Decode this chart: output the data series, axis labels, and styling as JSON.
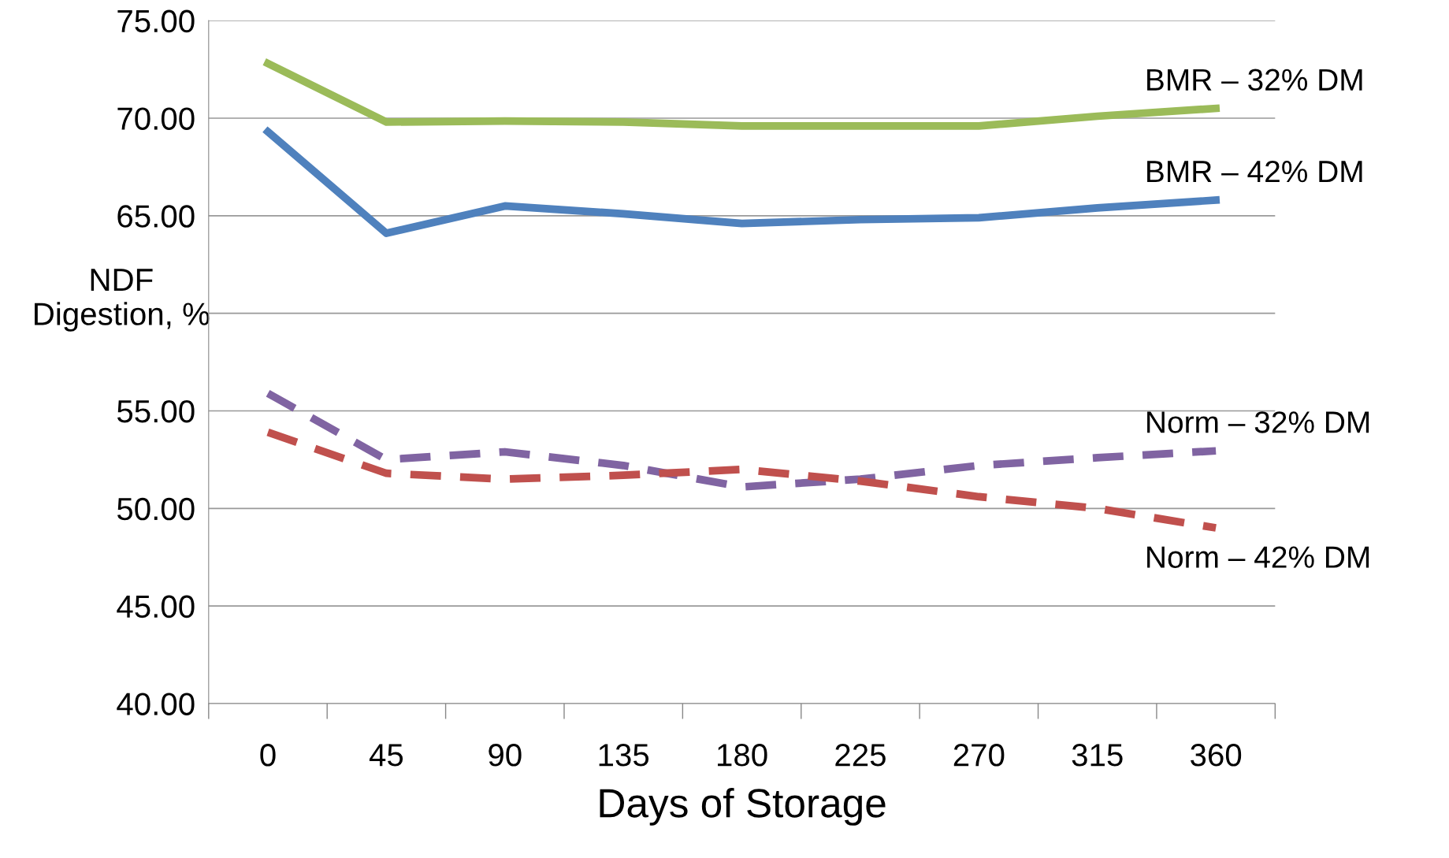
{
  "chart_data": {
    "type": "line",
    "xlabel": "Days of Storage",
    "ylabel": "NDF\nDigestion, %",
    "categories": [
      "0",
      "45",
      "90",
      "135",
      "180",
      "225",
      "270",
      "315",
      "360"
    ],
    "series": [
      {
        "name": "BMR – 32% DM",
        "color": "#9bbb59",
        "line_style": "solid",
        "values": [
          72.8,
          69.8,
          69.85,
          69.8,
          69.6,
          69.6,
          69.6,
          70.1,
          70.5
        ]
      },
      {
        "name": "BMR – 42% DM",
        "color": "#4f81bd",
        "line_style": "solid",
        "values": [
          69.3,
          64.1,
          65.5,
          65.1,
          64.6,
          64.8,
          64.9,
          65.4,
          65.8
        ]
      },
      {
        "name": "Norm – 32% DM",
        "color": "#8064a2",
        "line_style": "dashed",
        "values": [
          55.9,
          52.5,
          52.9,
          52.2,
          51.1,
          51.5,
          52.2,
          52.6,
          52.95
        ]
      },
      {
        "name": "Norm – 42% DM",
        "color": "#c0504d",
        "line_style": "dashed",
        "values": [
          53.9,
          51.8,
          51.5,
          51.7,
          52.0,
          51.4,
          50.6,
          50.0,
          49.0
        ]
      }
    ],
    "ylim": [
      40,
      75
    ],
    "yticks": [
      {
        "value": 40,
        "label": "40.00"
      },
      {
        "value": 45,
        "label": "45.00"
      },
      {
        "value": 50,
        "label": "50.00"
      },
      {
        "value": 55,
        "label": "55.00"
      },
      {
        "value": 60,
        "label": null
      },
      {
        "value": 65,
        "label": "65.00"
      },
      {
        "value": 70,
        "label": "70.00"
      },
      {
        "value": 75,
        "label": "75.00"
      }
    ],
    "grid": "y",
    "legend": false,
    "marker": "none"
  }
}
